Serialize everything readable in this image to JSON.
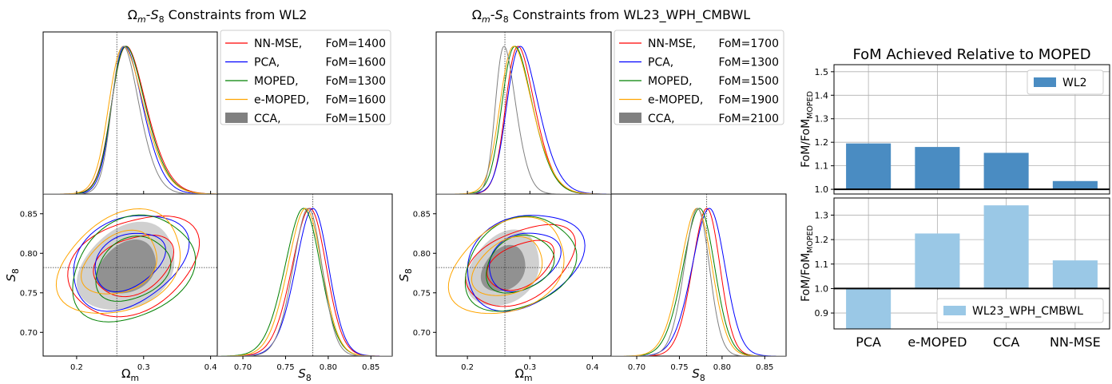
{
  "chart_data": [
    {
      "type": "corner",
      "panel": "left",
      "title": "Ωm-S8 Constraints from WL2",
      "x_param": {
        "label": "Ωm",
        "range": [
          0.15,
          0.41
        ],
        "ticks": [
          0.2,
          0.3,
          0.4
        ],
        "tick_labels": [
          "0.2",
          "0.3",
          "0.4"
        ],
        "fiducial": 0.26
      },
      "y_param": {
        "label": "S8",
        "range": [
          0.67,
          0.875
        ],
        "ticks": [
          0.7,
          0.75,
          0.8,
          0.85
        ],
        "tick_labels": [
          "0.70",
          "0.75",
          "0.80",
          "0.85"
        ],
        "fiducial": 0.782
      },
      "legend_placement": "upper-right empty panel",
      "series": [
        {
          "name": "NN-MSE,",
          "fom_label": "FoM=1400",
          "color": "#ff0000",
          "style": "line",
          "mean": [
            0.285,
            0.785
          ],
          "sd": [
            0.038,
            0.026
          ],
          "corr": 0.3,
          "peak_omega": 0.266,
          "peak_s8": 0.786
        },
        {
          "name": "PCA,",
          "fom_label": "FoM=1600",
          "color": "#0000ff",
          "style": "line",
          "mean": [
            0.278,
            0.79
          ],
          "sd": [
            0.034,
            0.025
          ],
          "corr": 0.35,
          "peak_omega": 0.266,
          "peak_s8": 0.789
        },
        {
          "name": "MOPED,",
          "fom_label": "FoM=1300",
          "color": "#008000",
          "style": "line",
          "mean": [
            0.283,
            0.78
          ],
          "sd": [
            0.037,
            0.027
          ],
          "corr": 0.3,
          "peak_omega": 0.266,
          "peak_s8": 0.779
        },
        {
          "name": "e-MOPED,",
          "fom_label": "FoM=1600",
          "color": "#ffa500",
          "style": "line",
          "mean": [
            0.265,
            0.787
          ],
          "sd": [
            0.038,
            0.026
          ],
          "corr": 0.33,
          "peak_omega": 0.262,
          "peak_s8": 0.781
        },
        {
          "name": "CCA,",
          "fom_label": "FoM=1500",
          "color": "#808080",
          "style": "filled",
          "mean": [
            0.275,
            0.782
          ],
          "sd": [
            0.03,
            0.022
          ],
          "corr": 0.3,
          "peak_omega": 0.266,
          "peak_s8": 0.782
        }
      ]
    },
    {
      "type": "corner",
      "panel": "middle",
      "title": "Ωm-S8 Constraints from WL23_WPH_CMBWL",
      "x_param": {
        "label": "Ωm",
        "range": [
          0.15,
          0.43
        ],
        "ticks": [
          0.2,
          0.3,
          0.4
        ],
        "tick_labels": [
          "0.2",
          "0.3",
          "0.4"
        ],
        "fiducial": 0.26
      },
      "y_param": {
        "label": "S8",
        "range": [
          0.67,
          0.875
        ],
        "ticks": [
          0.7,
          0.75,
          0.8,
          0.85
        ],
        "tick_labels": [
          "0.70",
          "0.75",
          "0.80",
          "0.85"
        ],
        "fiducial": 0.782
      },
      "legend_placement": "upper-right empty panel",
      "series": [
        {
          "name": "NN-MSE,",
          "fom_label": "FoM=1700",
          "color": "#ff0000",
          "style": "line",
          "mean": [
            0.285,
            0.785
          ],
          "sd": [
            0.034,
            0.021
          ],
          "corr": 0.4,
          "peak_omega": 0.275,
          "peak_s8": 0.787
        },
        {
          "name": "PCA,",
          "fom_label": "FoM=1300",
          "color": "#0000ff",
          "style": "line",
          "mean": [
            0.29,
            0.79
          ],
          "sd": [
            0.037,
            0.025
          ],
          "corr": 0.3,
          "peak_omega": 0.277,
          "peak_s8": 0.792
        },
        {
          "name": "MOPED,",
          "fom_label": "FoM=1500",
          "color": "#008000",
          "style": "line",
          "mean": [
            0.283,
            0.786
          ],
          "sd": [
            0.036,
            0.024
          ],
          "corr": 0.3,
          "peak_omega": 0.269,
          "peak_s8": 0.78
        },
        {
          "name": "e-MOPED,",
          "fom_label": "FoM=1900",
          "color": "#ffa500",
          "style": "line",
          "mean": [
            0.265,
            0.782
          ],
          "sd": [
            0.038,
            0.024
          ],
          "corr": 0.33,
          "peak_omega": 0.266,
          "peak_s8": 0.777
        },
        {
          "name": "CCA,",
          "fom_label": "FoM=2100",
          "color": "#808080",
          "style": "filled",
          "mean": [
            0.258,
            0.78
          ],
          "sd": [
            0.024,
            0.019
          ],
          "corr": 0.3,
          "peak_omega": 0.258,
          "peak_s8": 0.775
        }
      ]
    },
    {
      "type": "bar",
      "title": "FoM Achieved Relative to MOPED",
      "categories": [
        "PCA",
        "e-MOPED",
        "CCA",
        "NN-MSE"
      ],
      "bar_color_top": "#4a8cc2",
      "bar_color_bottom": "#9ac8e6",
      "top": {
        "ylabel": "FoM/FoMMOPED",
        "ylim": [
          0.98,
          1.53
        ],
        "ticks": [
          1.0,
          1.1,
          1.2,
          1.3,
          1.4,
          1.5
        ],
        "tick_labels": [
          "1.0",
          "1.1",
          "1.2",
          "1.3",
          "1.4",
          "1.5"
        ],
        "baseline": 1.0,
        "grid": true,
        "legend_placement": "top-right",
        "series": [
          {
            "name": "WL2",
            "values": [
              1.195,
              1.18,
              1.155,
              1.035
            ]
          }
        ]
      },
      "bottom": {
        "ylabel": "FoM/FoMMOPED",
        "ylim": [
          0.835,
          1.37
        ],
        "ticks": [
          0.9,
          1.0,
          1.1,
          1.2,
          1.3
        ],
        "tick_labels": [
          "0.9",
          "1.0",
          "1.1",
          "1.2",
          "1.3"
        ],
        "baseline": 1.0,
        "grid": true,
        "legend_placement": "bottom-right",
        "series": [
          {
            "name": "WL23_WPH_CMBWL",
            "values": [
              0.81,
              1.225,
              1.34,
              1.115
            ]
          }
        ]
      }
    }
  ]
}
